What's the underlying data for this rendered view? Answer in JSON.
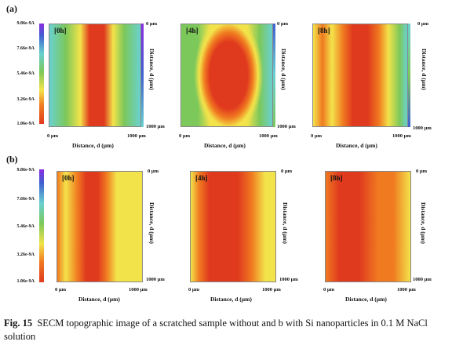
{
  "figure": {
    "panel_a_label": "(a)",
    "panel_b_label": "(b)",
    "colorbar_ticks": [
      "9.86e-9A",
      "7.66e-9A",
      "5.46e-9A",
      "3.26e-9A",
      "1.06e-9A"
    ],
    "map_tags": [
      "[0h]",
      "[4h]",
      "[8h]"
    ],
    "y_top": "0 µm",
    "y_bottom": "1000 µm",
    "y_axis_label": "Distance, d (µm)",
    "x_start": "0 µm",
    "x_end": "1000 µm",
    "x_axis_label": "Distance, d (µm)"
  },
  "colors": {
    "red": "#e03a1e",
    "orange": "#f07a20",
    "yellow": "#f3e34a",
    "green": "#7cc85a",
    "cyan": "#69d1d0",
    "blue": "#4060d0",
    "purple": "#8a2be2"
  },
  "caption": {
    "fig_number": "Fig. 15",
    "text": "SECM topographic image of a scratched sample without and b with Si nanoparticles in 0.1 M NaCl solution"
  }
}
